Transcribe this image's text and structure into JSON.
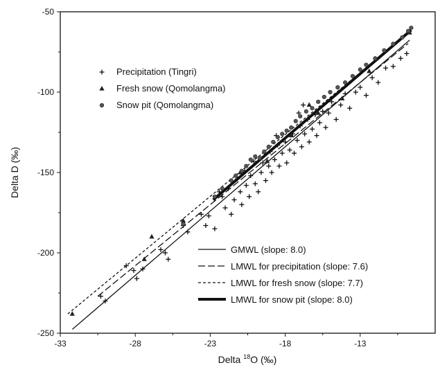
{
  "chart_data": {
    "type": "scatter",
    "title": "",
    "xlabel_prefix": "Delta ",
    "xlabel_sup": "18",
    "xlabel_suffix": "O (‰)",
    "ylabel": "Delta D (‰)",
    "xlim": [
      -33,
      -8
    ],
    "ylim": [
      -250,
      -50
    ],
    "x_ticks": [
      -33,
      -28,
      -23,
      -18,
      -13
    ],
    "x_tick_labels": [
      "-33",
      "-28",
      "-23",
      "-18",
      "-13"
    ],
    "y_ticks": [
      -250,
      -200,
      -150,
      -100,
      -50
    ],
    "y_tick_labels": [
      "-250",
      "-200",
      "-150",
      "-100",
      "-50"
    ],
    "grid": false,
    "point_legend": [
      {
        "label": "Precipitation (Tingri)",
        "marker": "plus"
      },
      {
        "label": "Fresh snow (Qomolangma)",
        "marker": "triangle"
      },
      {
        "label": "Snow pit (Qomolangma)",
        "marker": "circle"
      }
    ],
    "line_legend": [
      {
        "label": "GMWL (slope: 8.0)",
        "style": "solid"
      },
      {
        "label": "LMWL for precipitation (slope: 7.6)",
        "style": "dashed"
      },
      {
        "label": "LMWL for fresh snow (slope: 7.7)",
        "style": "dotted"
      },
      {
        "label": "LMWL for snow pit (slope: 8.0)",
        "style": "thick"
      }
    ],
    "lines": [
      {
        "name": "GMWL (slope: 8.0)",
        "style": "solid",
        "x": [
          -32.2,
          -9.7
        ],
        "y": [
          -247.6,
          -67.6
        ]
      },
      {
        "name": "LMWL for precipitation (slope: 7.6)",
        "style": "dashed",
        "x": [
          -30.5,
          -9.8
        ],
        "y": [
          -227.0,
          -69.7
        ]
      },
      {
        "name": "LMWL for fresh snow (slope: 7.7)",
        "style": "dotted",
        "x": [
          -32.5,
          -9.6
        ],
        "y": [
          -238.0,
          -61.7
        ]
      },
      {
        "name": "LMWL for snow pit (slope: 8.0)",
        "style": "thick",
        "x": [
          -22.8,
          -9.6
        ],
        "y": [
          -167.0,
          -61.4
        ]
      }
    ],
    "series": [
      {
        "name": "Precipitation (Tingri)",
        "marker": "plus",
        "points": [
          [
            -30.3,
            -227
          ],
          [
            -30,
            -230
          ],
          [
            -28.6,
            -208
          ],
          [
            -28.1,
            -211
          ],
          [
            -27.9,
            -216
          ],
          [
            -27.5,
            -210
          ],
          [
            -26.3,
            -198
          ],
          [
            -26.0,
            -200
          ],
          [
            -25.8,
            -204
          ],
          [
            -24.8,
            -183
          ],
          [
            -24.5,
            -187
          ],
          [
            -23.6,
            -176
          ],
          [
            -23.3,
            -183
          ],
          [
            -23.1,
            -177
          ],
          [
            -22.7,
            -185
          ],
          [
            -22.2,
            -165
          ],
          [
            -22.0,
            -172
          ],
          [
            -21.8,
            -160
          ],
          [
            -21.6,
            -176
          ],
          [
            -21.4,
            -167
          ],
          [
            -21.2,
            -154
          ],
          [
            -21.0,
            -162
          ],
          [
            -20.9,
            -170
          ],
          [
            -20.7,
            -149
          ],
          [
            -20.6,
            -158
          ],
          [
            -20.4,
            -165
          ],
          [
            -20.3,
            -152
          ],
          [
            -20.1,
            -143
          ],
          [
            -20.0,
            -157
          ],
          [
            -19.8,
            -162
          ],
          [
            -19.6,
            -150
          ],
          [
            -19.5,
            -144
          ],
          [
            -19.3,
            -155
          ],
          [
            -19.1,
            -146
          ],
          [
            -19.0,
            -137
          ],
          [
            -18.9,
            -150
          ],
          [
            -18.7,
            -142
          ],
          [
            -18.5,
            -133
          ],
          [
            -18.4,
            -146
          ],
          [
            -18.2,
            -138
          ],
          [
            -18.0,
            -131
          ],
          [
            -17.9,
            -144
          ],
          [
            -17.7,
            -136
          ],
          [
            -17.5,
            -126
          ],
          [
            -17.4,
            -138
          ],
          [
            -17.2,
            -130
          ],
          [
            -17.0,
            -121
          ],
          [
            -16.9,
            -134
          ],
          [
            -16.7,
            -126
          ],
          [
            -16.5,
            -117
          ],
          [
            -16.4,
            -131
          ],
          [
            -16.2,
            -123
          ],
          [
            -16.0,
            -114
          ],
          [
            -15.9,
            -127
          ],
          [
            -15.7,
            -119
          ],
          [
            -15.5,
            -112
          ],
          [
            -15.3,
            -122
          ],
          [
            -15.1,
            -113
          ],
          [
            -14.9,
            -106
          ],
          [
            -14.6,
            -117
          ],
          [
            -14.3,
            -108
          ],
          [
            -14.0,
            -101
          ],
          [
            -13.7,
            -110
          ],
          [
            -13.3,
            -100
          ],
          [
            -13.0,
            -97
          ],
          [
            -12.6,
            -102
          ],
          [
            -12.2,
            -91
          ],
          [
            -11.8,
            -94
          ],
          [
            -11.3,
            -85
          ],
          [
            -10.8,
            -84
          ],
          [
            -10.3,
            -79
          ],
          [
            -9.9,
            -76
          ],
          [
            -16.8,
            -108
          ],
          [
            -17.1,
            -113
          ],
          [
            -18.6,
            -127
          ],
          [
            -19.4,
            -138
          ],
          [
            -20.8,
            -150
          ],
          [
            -22.4,
            -162
          ]
        ]
      },
      {
        "name": "Fresh snow (Qomolangma)",
        "marker": "triangle",
        "points": [
          [
            -32.2,
            -238
          ],
          [
            -27.4,
            -204
          ],
          [
            -26.9,
            -190
          ],
          [
            -24.8,
            -180
          ],
          [
            -21.0,
            -150
          ],
          [
            -19.2,
            -143
          ],
          [
            -17.6,
            -127
          ],
          [
            -16.4,
            -108
          ],
          [
            -15.8,
            -113
          ],
          [
            -14.2,
            -104
          ],
          [
            -12.4,
            -87
          ],
          [
            -9.7,
            -63
          ]
        ]
      },
      {
        "name": "Snow pit (Qomolangma)",
        "marker": "circle",
        "points": [
          [
            -24.8,
            -182
          ],
          [
            -22.7,
            -165
          ],
          [
            -22.2,
            -160
          ],
          [
            -21.6,
            -155
          ],
          [
            -21.3,
            -152
          ],
          [
            -20.9,
            -149
          ],
          [
            -20.6,
            -146
          ],
          [
            -20.3,
            -142
          ],
          [
            -20.0,
            -140
          ],
          [
            -19.7,
            -141
          ],
          [
            -19.4,
            -137
          ],
          [
            -19.1,
            -134
          ],
          [
            -18.8,
            -131
          ],
          [
            -18.5,
            -128
          ],
          [
            -18.2,
            -126
          ],
          [
            -17.9,
            -124
          ],
          [
            -17.6,
            -122
          ],
          [
            -17.3,
            -118
          ],
          [
            -17.0,
            -115
          ],
          [
            -16.6,
            -112
          ],
          [
            -16.2,
            -110
          ],
          [
            -15.8,
            -106
          ],
          [
            -15.4,
            -103
          ],
          [
            -15.0,
            -100
          ],
          [
            -14.5,
            -97
          ],
          [
            -14.0,
            -94
          ],
          [
            -13.5,
            -90
          ],
          [
            -13.0,
            -86
          ],
          [
            -12.6,
            -83
          ],
          [
            -12.0,
            -79
          ],
          [
            -11.4,
            -74
          ],
          [
            -10.8,
            -70
          ],
          [
            -10.2,
            -66
          ],
          [
            -9.8,
            -62
          ],
          [
            -9.6,
            -60
          ]
        ]
      }
    ]
  }
}
